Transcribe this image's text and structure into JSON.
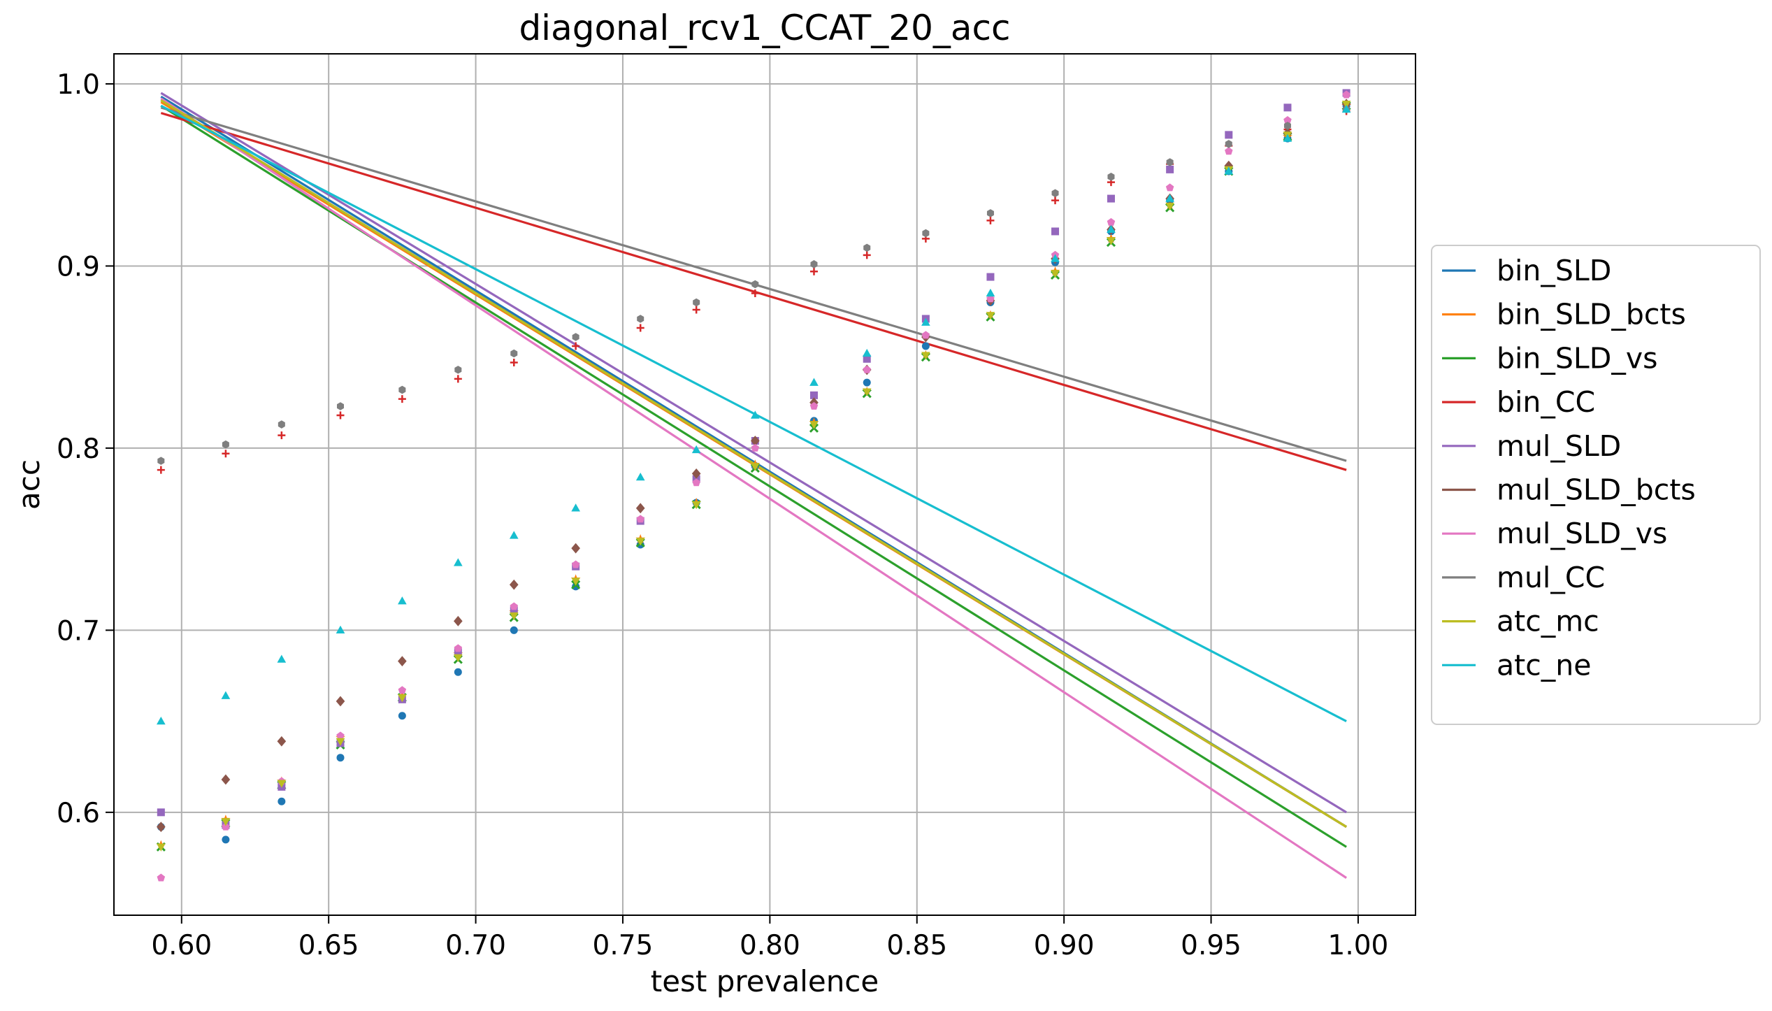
{
  "chart_data": {
    "type": "line",
    "title": "diagonal_rcv1_CCAT_20_acc",
    "xlabel": "test prevalence",
    "ylabel": "acc",
    "xlim": [
      0.577,
      1.0195
    ],
    "ylim": [
      0.5435,
      1.0165
    ],
    "xticks": [
      0.6,
      0.65,
      0.7,
      0.75,
      0.8,
      0.85,
      0.9,
      0.95,
      1.0
    ],
    "xtick_labels": [
      "0.60",
      "0.65",
      "0.70",
      "0.75",
      "0.80",
      "0.85",
      "0.90",
      "0.95",
      "1.00"
    ],
    "yticks": [
      0.6,
      0.7,
      0.8,
      0.9,
      1.0
    ],
    "ytick_labels": [
      "0.6",
      "0.7",
      "0.8",
      "0.9",
      "1.0"
    ],
    "grid": true,
    "legend_position": "right-outside",
    "line_x": [
      0.593,
      0.996
    ],
    "scatter_x": [
      0.593,
      0.615,
      0.634,
      0.654,
      0.675,
      0.694,
      0.713,
      0.734,
      0.756,
      0.775,
      0.795,
      0.815,
      0.833,
      0.853,
      0.875,
      0.897,
      0.916,
      0.936,
      0.956,
      0.976,
      0.996
    ],
    "series": [
      {
        "name": "bin_SLD",
        "color": "#1f77b4",
        "marker": "circle",
        "line": [
          0.993,
          0.592
        ],
        "values": [
          0.592,
          0.585,
          0.606,
          0.63,
          0.653,
          0.677,
          0.7,
          0.724,
          0.747,
          0.77,
          0.79,
          0.815,
          0.836,
          0.856,
          0.88,
          0.902,
          0.919,
          0.936,
          0.952,
          0.97,
          0.988
        ]
      },
      {
        "name": "bin_SLD_bcts",
        "color": "#ff7f0e",
        "marker": "star",
        "line": [
          0.99,
          0.592
        ],
        "values": [
          0.582,
          0.596,
          0.617,
          0.641,
          0.664,
          0.687,
          0.71,
          0.728,
          0.75,
          0.77,
          0.791,
          0.814,
          0.831,
          0.851,
          0.873,
          0.897,
          0.915,
          0.933,
          0.953,
          0.971,
          0.988
        ]
      },
      {
        "name": "bin_SLD_vs",
        "color": "#2ca02c",
        "marker": "x",
        "line": [
          0.988,
          0.581
        ],
        "values": [
          0.581,
          0.594,
          0.615,
          0.637,
          0.663,
          0.684,
          0.707,
          0.725,
          0.748,
          0.769,
          0.789,
          0.811,
          0.83,
          0.85,
          0.872,
          0.895,
          0.913,
          0.932,
          0.952,
          0.971,
          0.988
        ]
      },
      {
        "name": "bin_CC",
        "color": "#d62728",
        "marker": "plus",
        "line": [
          0.984,
          0.788
        ],
        "values": [
          0.788,
          0.797,
          0.807,
          0.818,
          0.827,
          0.838,
          0.847,
          0.856,
          0.866,
          0.876,
          0.885,
          0.897,
          0.906,
          0.915,
          0.925,
          0.936,
          0.946,
          0.956,
          0.966,
          0.975,
          0.985
        ]
      },
      {
        "name": "mul_SLD",
        "color": "#9467bd",
        "marker": "square",
        "line": [
          0.995,
          0.6
        ],
        "values": [
          0.6,
          0.593,
          0.614,
          0.638,
          0.662,
          0.688,
          0.711,
          0.735,
          0.76,
          0.783,
          0.804,
          0.829,
          0.849,
          0.871,
          0.894,
          0.919,
          0.937,
          0.953,
          0.972,
          0.987,
          0.995
        ]
      },
      {
        "name": "mul_SLD_bcts",
        "color": "#8c564b",
        "marker": "diamond",
        "line": [
          0.991,
          0.592
        ],
        "values": [
          0.592,
          0.618,
          0.639,
          0.661,
          0.683,
          0.705,
          0.725,
          0.745,
          0.767,
          0.786,
          0.804,
          0.825,
          0.843,
          0.861,
          0.881,
          0.904,
          0.92,
          0.937,
          0.955,
          0.973,
          0.989
        ]
      },
      {
        "name": "mul_SLD_vs",
        "color": "#e377c2",
        "marker": "pentagon",
        "line": [
          0.992,
          0.564
        ],
        "values": [
          0.564,
          0.592,
          0.617,
          0.642,
          0.667,
          0.69,
          0.713,
          0.736,
          0.761,
          0.781,
          0.8,
          0.823,
          0.843,
          0.862,
          0.882,
          0.906,
          0.924,
          0.943,
          0.963,
          0.98,
          0.994
        ]
      },
      {
        "name": "mul_CC",
        "color": "#7f7f7f",
        "marker": "hexagon",
        "line": [
          0.987,
          0.793
        ],
        "values": [
          0.793,
          0.802,
          0.813,
          0.823,
          0.832,
          0.843,
          0.852,
          0.861,
          0.871,
          0.88,
          0.89,
          0.901,
          0.91,
          0.918,
          0.929,
          0.94,
          0.949,
          0.957,
          0.967,
          0.977,
          0.986
        ]
      },
      {
        "name": "atc_mc",
        "color": "#bcbd22",
        "marker": "triangle-down",
        "line": [
          0.991,
          0.592
        ],
        "values": [
          0.581,
          0.595,
          0.616,
          0.639,
          0.663,
          0.685,
          0.708,
          0.727,
          0.749,
          0.769,
          0.79,
          0.813,
          0.831,
          0.851,
          0.873,
          0.896,
          0.914,
          0.933,
          0.953,
          0.972,
          0.989
        ]
      },
      {
        "name": "atc_ne",
        "color": "#17becf",
        "marker": "triangle-up",
        "line": [
          0.988,
          0.65
        ],
        "values": [
          0.65,
          0.664,
          0.684,
          0.7,
          0.716,
          0.737,
          0.752,
          0.767,
          0.784,
          0.799,
          0.818,
          0.836,
          0.852,
          0.869,
          0.885,
          0.904,
          0.92,
          0.937,
          0.952,
          0.97,
          0.986
        ]
      }
    ]
  }
}
